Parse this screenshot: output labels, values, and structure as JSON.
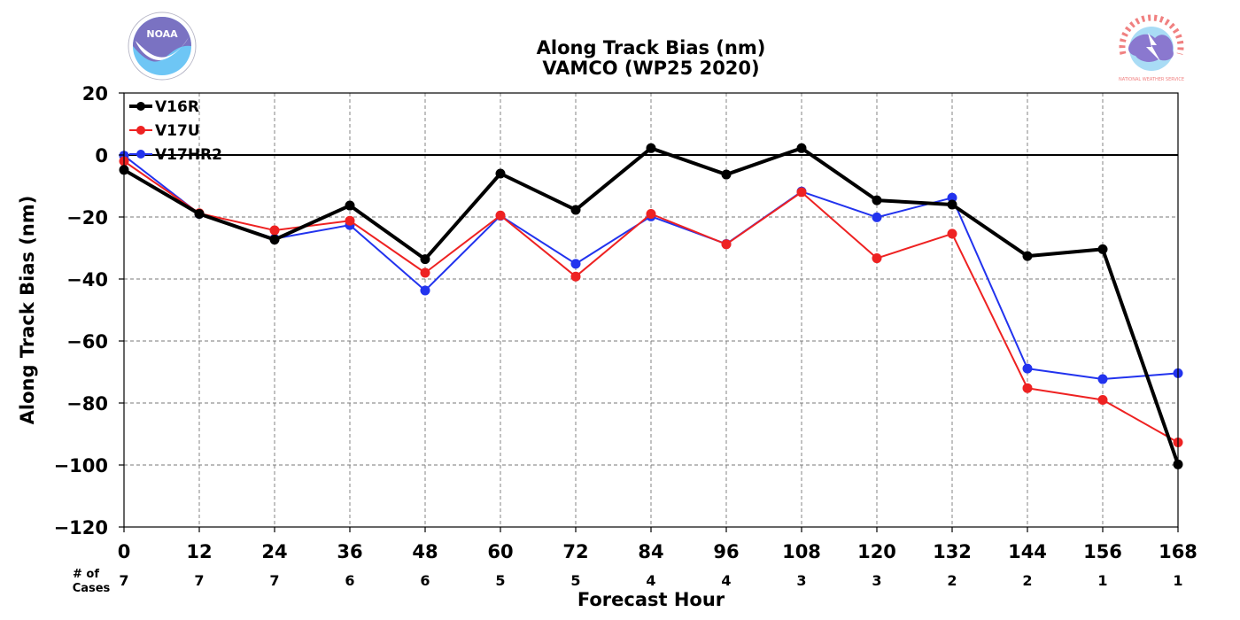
{
  "chart_data": {
    "type": "line",
    "title": "Along Track Bias (nm)",
    "subtitle": "VAMCO (WP25 2020)",
    "xlabel": "Forecast Hour",
    "ylabel": "Along Track Bias (nm)",
    "x": [
      0,
      12,
      24,
      36,
      48,
      60,
      72,
      84,
      96,
      108,
      120,
      132,
      144,
      156,
      168
    ],
    "xlim": [
      0,
      168
    ],
    "ylim": [
      -120,
      20
    ],
    "yticks": [
      20,
      0,
      -20,
      -40,
      -60,
      -80,
      -100,
      -120
    ],
    "ytick_labels": [
      "20",
      "0",
      "−20",
      "−40",
      "−60",
      "−80",
      "−100",
      "−120"
    ],
    "grid": true,
    "legend_position": "top-left",
    "cases_header": [
      "# of",
      "Cases"
    ],
    "cases": [
      7,
      7,
      7,
      6,
      6,
      5,
      5,
      4,
      4,
      3,
      3,
      2,
      2,
      1,
      1
    ],
    "series": [
      {
        "name": "V16R",
        "color": "#000000",
        "values": [
          -4.8,
          -19.0,
          -27.3,
          -16.3,
          -33.6,
          -6.0,
          -17.7,
          2.2,
          -6.3,
          2.2,
          -14.6,
          -16.0,
          -32.6,
          -30.4,
          -99.8
        ]
      },
      {
        "name": "V17U",
        "color": "#ee2222",
        "values": [
          -2.0,
          -18.8,
          -24.3,
          -21.2,
          -38.0,
          -19.5,
          -39.2,
          -19.0,
          -28.8,
          -12.0,
          -33.3,
          -25.4,
          -75.2,
          -79.0,
          -92.7
        ]
      },
      {
        "name": "V17HR2",
        "color": "#2233ee",
        "values": [
          -0.2,
          -19.0,
          -27.0,
          -22.6,
          -43.7,
          -19.6,
          -35.1,
          -19.8,
          -28.7,
          -11.8,
          -20.1,
          -13.8,
          -68.9,
          -72.3,
          -70.4
        ]
      }
    ]
  },
  "logos": {
    "left": {
      "name": "NOAA",
      "text": "NOAA"
    },
    "right": {
      "name": "NATIONAL WEATHER SERVICE",
      "text": "NATIONAL WEATHER SERVICE"
    }
  }
}
